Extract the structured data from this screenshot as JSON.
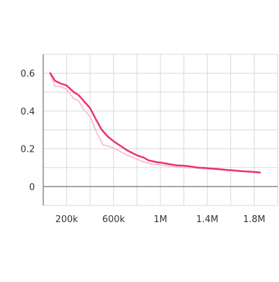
{
  "chart_data": {
    "type": "line",
    "title": "",
    "xlabel": "",
    "ylabel": "",
    "xlim": [
      0,
      2000000
    ],
    "ylim": [
      -0.1,
      0.7
    ],
    "grid": true,
    "x_major_ticks": [
      200000,
      600000,
      1000000,
      1400000,
      1800000
    ],
    "x_tick_labels": [
      "200k",
      "600k",
      "1M",
      "1.4M",
      "1.8M"
    ],
    "x_minor_ticks": [
      0,
      400000,
      800000,
      1200000,
      1600000,
      2000000
    ],
    "y_ticks": [
      0,
      0.2,
      0.4,
      0.6
    ],
    "y_tick_labels": [
      "0",
      "0.2",
      "0.4",
      "0.6"
    ],
    "y_minor_ticks": [
      -0.1,
      0.1,
      0.3,
      0.5,
      0.7
    ],
    "colors": {
      "smoothed": "#e8336f",
      "raw": "#f6c4d5",
      "axis": "#888888",
      "grid": "#d8d8d8"
    },
    "series": [
      {
        "role": "raw",
        "x": [
          60000,
          100000,
          140000,
          200000,
          260000,
          300000,
          350000,
          400000,
          460000,
          510000,
          550000,
          600000,
          660000,
          720000,
          800000,
          860000,
          920000,
          1000000,
          1080000,
          1150000,
          1230000,
          1300000,
          1380000,
          1450000,
          1520000,
          1600000,
          1680000,
          1750000,
          1800000,
          1850000
        ],
        "y": [
          0.595,
          0.53,
          0.53,
          0.515,
          0.465,
          0.455,
          0.405,
          0.37,
          0.28,
          0.22,
          0.215,
          0.205,
          0.185,
          0.165,
          0.145,
          0.13,
          0.12,
          0.115,
          0.108,
          0.103,
          0.1,
          0.098,
          0.095,
          0.092,
          0.088,
          0.085,
          0.08,
          0.078,
          0.075,
          0.072
        ]
      },
      {
        "role": "smoothed",
        "x": [
          60000,
          100000,
          150000,
          200000,
          260000,
          300000,
          350000,
          400000,
          450000,
          500000,
          550000,
          600000,
          660000,
          720000,
          800000,
          860000,
          900000,
          960000,
          1020000,
          1080000,
          1140000,
          1200000,
          1260000,
          1320000,
          1380000,
          1440000,
          1500000,
          1560000,
          1620000,
          1680000,
          1740000,
          1800000,
          1850000
        ],
        "y": [
          0.6,
          0.56,
          0.545,
          0.535,
          0.5,
          0.485,
          0.45,
          0.415,
          0.355,
          0.3,
          0.265,
          0.24,
          0.215,
          0.19,
          0.165,
          0.152,
          0.138,
          0.13,
          0.125,
          0.118,
          0.112,
          0.11,
          0.106,
          0.1,
          0.098,
          0.095,
          0.092,
          0.088,
          0.085,
          0.082,
          0.08,
          0.077,
          0.074
        ]
      }
    ]
  }
}
